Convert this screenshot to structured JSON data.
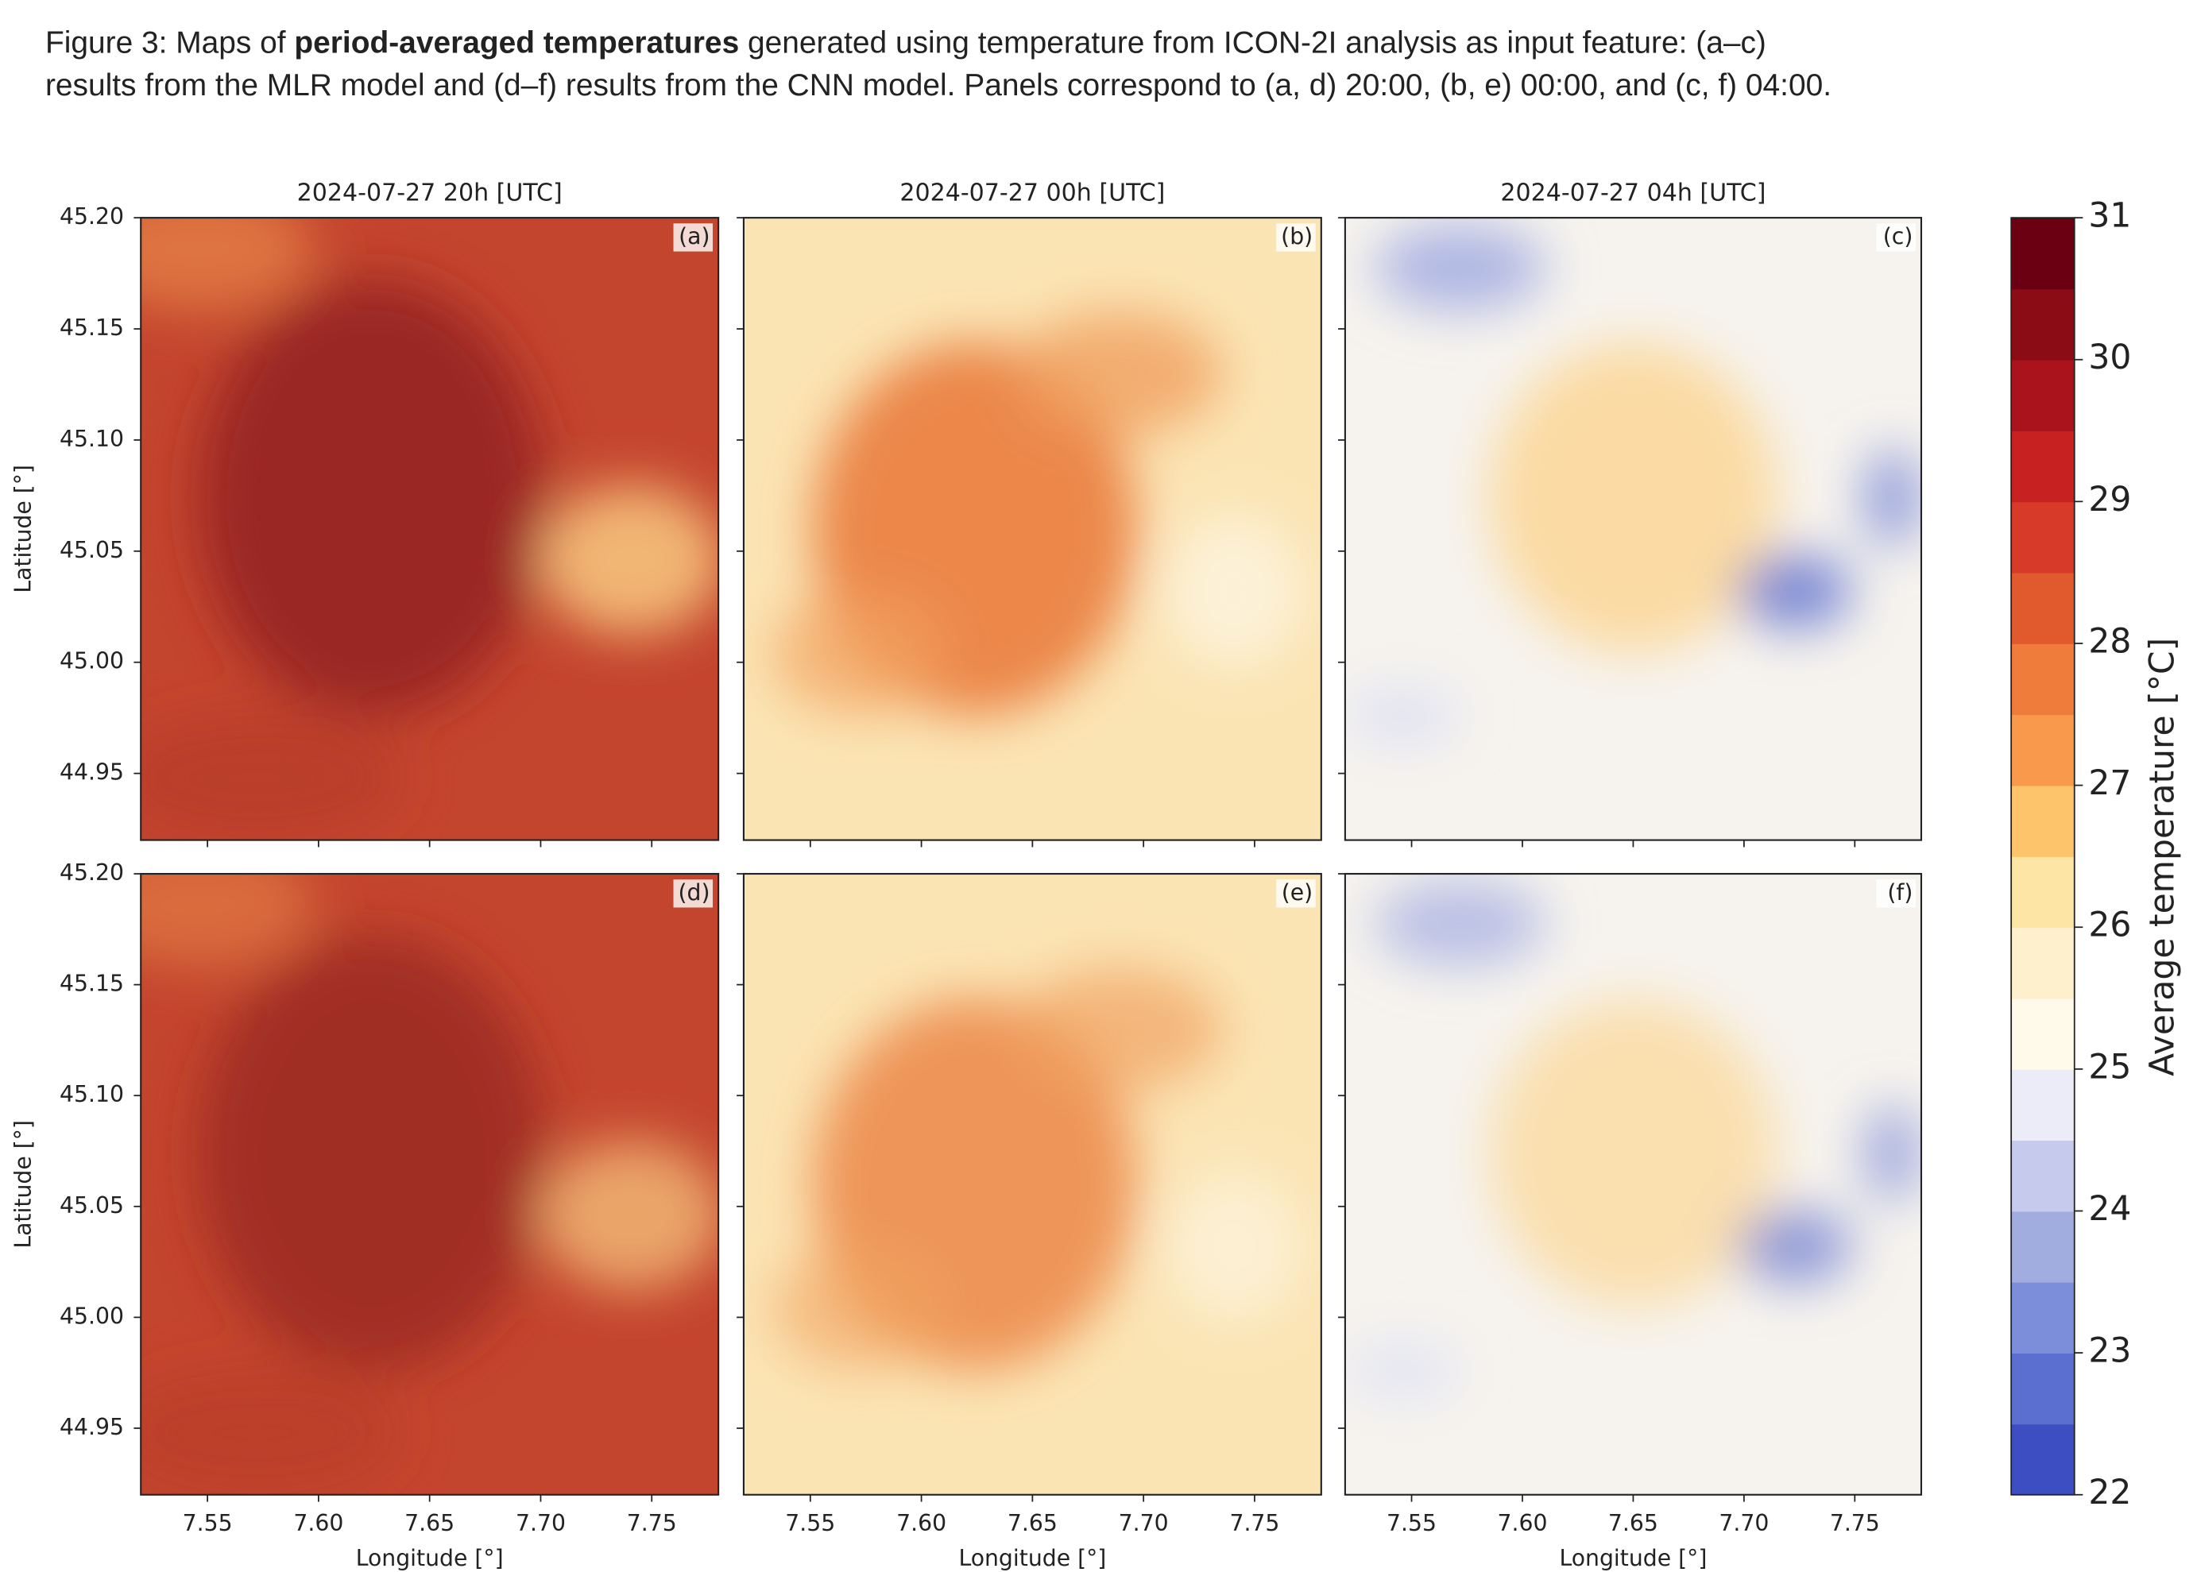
{
  "caption": {
    "line1": [
      "Figure 3: Maps of ",
      "period-averaged temperatures",
      " generated using temperature from ICON-2I analysis as input feature: (a–c)"
    ],
    "line2": "results from the MLR model and (d–f) results from the CNN model. Panels correspond to (a, d) 20:00, (b, e) 00:00, and (c, f) 04:00."
  },
  "chart_data": {
    "type": "heatmap",
    "column_titles": [
      "2024-07-27 20h [UTC]",
      "2024-07-27 00h [UTC]",
      "2024-07-27 04h [UTC]"
    ],
    "panel_labels": [
      "(a)",
      "(b)",
      "(c)",
      "(d)",
      "(e)",
      "(f)"
    ],
    "xlabel": "Longitude [°]",
    "ylabel": "Latitude [°]",
    "xlim": [
      7.52,
      7.78
    ],
    "ylim": [
      44.92,
      45.2
    ],
    "xticks": [
      7.55,
      {
        "value": 7.6,
        "label": "7.60"
      },
      7.65,
      {
        "value": 7.7,
        "label": "7.70"
      },
      7.75
    ],
    "yticks": [
      {
        "value": 45.2,
        "label": "45.20"
      },
      45.15,
      {
        "value": 45.1,
        "label": "45.10"
      },
      45.05,
      {
        "value": 45.0,
        "label": "45.00"
      },
      44.95
    ],
    "colorbar": {
      "label": "Average temperature [°C]",
      "lim": [
        22,
        31
      ],
      "ticks": [
        22,
        23,
        24,
        25,
        26,
        27,
        28,
        29,
        30,
        31
      ],
      "colors": [
        "#3c4ec2",
        "#5b6fd0",
        "#7c8ed9",
        "#a1acdf",
        "#c6cbed",
        "#ececf8",
        "#fffaea",
        "#fef0cd",
        "#fde5a6",
        "#fdc46c",
        "#f8994c",
        "#f07c3b",
        "#e05a2e",
        "#d73a29",
        "#c82121",
        "#aa131b",
        "#8c0c16",
        "#6a0012"
      ]
    }
  }
}
